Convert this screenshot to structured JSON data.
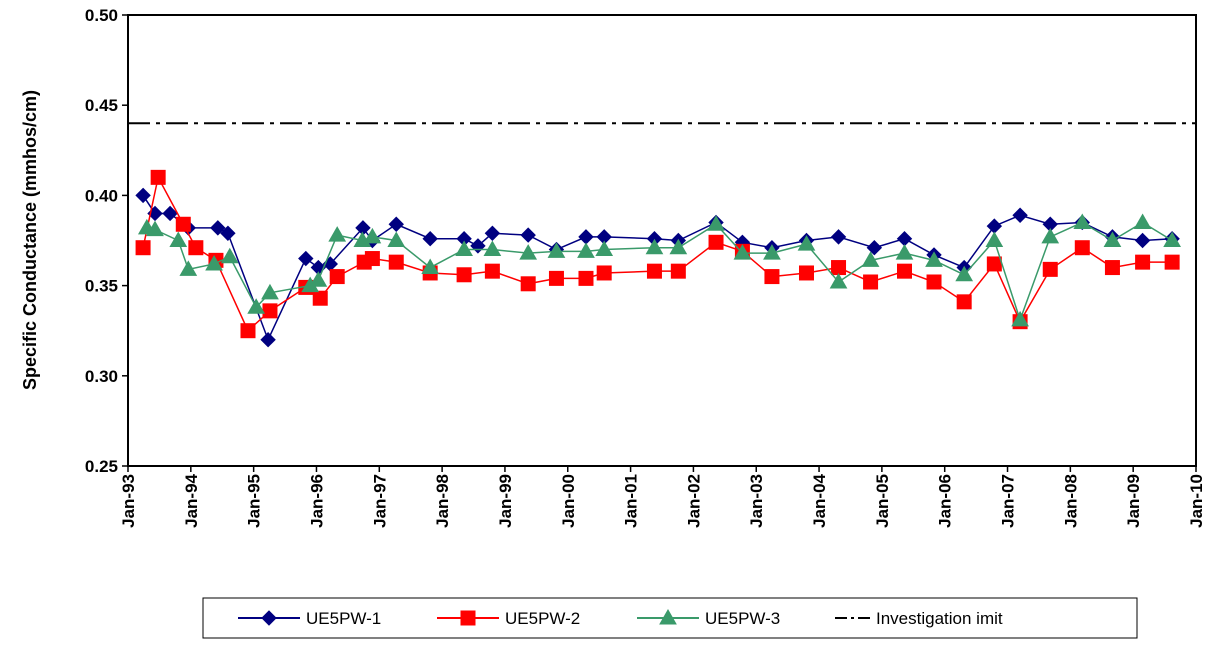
{
  "chart_data": {
    "type": "line",
    "y_label": "Specific Conductance (mmhos/cm)",
    "xlim": [
      1993,
      2010
    ],
    "xticks": [
      {
        "value": 1993,
        "label": "Jan-93"
      },
      {
        "value": 1994,
        "label": "Jan-94"
      },
      {
        "value": 1995,
        "label": "Jan-95"
      },
      {
        "value": 1996,
        "label": "Jan-96"
      },
      {
        "value": 1997,
        "label": "Jan-97"
      },
      {
        "value": 1998,
        "label": "Jan-98"
      },
      {
        "value": 1999,
        "label": "Jan-99"
      },
      {
        "value": 2000,
        "label": "Jan-00"
      },
      {
        "value": 2001,
        "label": "Jan-01"
      },
      {
        "value": 2002,
        "label": "Jan-02"
      },
      {
        "value": 2003,
        "label": "Jan-03"
      },
      {
        "value": 2004,
        "label": "Jan-04"
      },
      {
        "value": 2005,
        "label": "Jan-05"
      },
      {
        "value": 2006,
        "label": "Jan-06"
      },
      {
        "value": 2007,
        "label": "Jan-07"
      },
      {
        "value": 2008,
        "label": "Jan-08"
      },
      {
        "value": 2009,
        "label": "Jan-09"
      },
      {
        "value": 2010,
        "label": "Jan-10"
      }
    ],
    "ylim": [
      0.25,
      0.5
    ],
    "yticks": [
      0.25,
      {
        "value": 0.3,
        "label": "0.30"
      },
      0.35,
      {
        "value": 0.4,
        "label": "0.40"
      },
      0.45,
      {
        "value": 0.5,
        "label": "0.50"
      }
    ],
    "grid": false,
    "series": [
      {
        "name": "UE5PW-1",
        "color": "#000080",
        "marker": "diamond",
        "x": [
          1993.24,
          1993.43,
          1993.67,
          1993.96,
          1994.43,
          1994.59,
          1995.23,
          1995.83,
          1996.03,
          1996.22,
          1996.74,
          1996.89,
          1997.27,
          1997.81,
          1998.35,
          1998.57,
          1998.8,
          1999.37,
          1999.82,
          2000.29,
          2000.58,
          2001.38,
          2001.76,
          2002.36,
          2002.78,
          2003.25,
          2003.8,
          2004.31,
          2004.88,
          2005.36,
          2005.83,
          2006.31,
          2006.79,
          2007.2,
          2007.68,
          2008.19,
          2008.67,
          2009.15,
          2009.62
        ],
        "values": [
          0.4,
          0.39,
          0.39,
          0.382,
          0.382,
          0.379,
          0.32,
          0.365,
          0.36,
          0.362,
          0.382,
          0.375,
          0.384,
          0.376,
          0.376,
          0.372,
          0.379,
          0.378,
          0.37,
          0.377,
          0.377,
          0.376,
          0.375,
          0.385,
          0.374,
          0.371,
          0.375,
          0.377,
          0.371,
          0.376,
          0.367,
          0.36,
          0.383,
          0.389,
          0.384,
          0.385,
          0.377,
          0.375,
          0.376
        ]
      },
      {
        "name": "UE5PW-2",
        "color": "#ff0000",
        "marker": "square",
        "x": [
          1993.24,
          1993.48,
          1993.88,
          1994.08,
          1994.4,
          1994.91,
          1995.26,
          1995.83,
          1996.06,
          1996.33,
          1996.76,
          1996.89,
          1997.27,
          1997.81,
          1998.35,
          1998.8,
          1999.37,
          1999.82,
          2000.29,
          2000.58,
          2001.38,
          2001.76,
          2002.36,
          2002.78,
          2003.25,
          2003.8,
          2004.31,
          2004.82,
          2005.36,
          2005.83,
          2006.31,
          2006.79,
          2007.2,
          2007.68,
          2008.19,
          2008.67,
          2009.15,
          2009.62
        ],
        "values": [
          0.371,
          0.41,
          0.384,
          0.371,
          0.364,
          0.325,
          0.336,
          0.349,
          0.343,
          0.355,
          0.363,
          0.365,
          0.363,
          0.357,
          0.356,
          0.358,
          0.351,
          0.354,
          0.354,
          0.357,
          0.358,
          0.358,
          0.374,
          0.369,
          0.355,
          0.357,
          0.36,
          0.352,
          0.358,
          0.352,
          0.341,
          0.362,
          0.33,
          0.359,
          0.371,
          0.36,
          0.363,
          0.363
        ]
      },
      {
        "name": "UE5PW-3",
        "color": "#3a9a6a",
        "marker": "triangle",
        "x": [
          1993.3,
          1993.43,
          1993.8,
          1993.96,
          1994.37,
          1994.62,
          1995.04,
          1995.26,
          1995.9,
          1996.03,
          1996.33,
          1996.73,
          1996.89,
          1997.27,
          1997.81,
          1998.35,
          1998.8,
          1999.37,
          1999.82,
          2000.29,
          2000.58,
          2001.38,
          2001.76,
          2002.36,
          2002.78,
          2003.25,
          2003.8,
          2004.31,
          2004.82,
          2005.36,
          2005.83,
          2006.31,
          2006.79,
          2007.2,
          2007.68,
          2008.19,
          2008.67,
          2009.15,
          2009.62
        ],
        "values": [
          0.382,
          0.381,
          0.375,
          0.359,
          0.362,
          0.366,
          0.338,
          0.346,
          0.35,
          0.353,
          0.378,
          0.375,
          0.377,
          0.375,
          0.36,
          0.37,
          0.37,
          0.368,
          0.369,
          0.369,
          0.37,
          0.371,
          0.371,
          0.384,
          0.368,
          0.368,
          0.373,
          0.352,
          0.364,
          0.368,
          0.364,
          0.356,
          0.375,
          0.331,
          0.377,
          0.385,
          0.375,
          0.385,
          0.375
        ]
      },
      {
        "name": "Investigation imit",
        "color": "#000000",
        "marker": "none",
        "dash": "dashdot",
        "x": [
          1993,
          2010
        ],
        "values": [
          0.44,
          0.44
        ]
      }
    ]
  }
}
